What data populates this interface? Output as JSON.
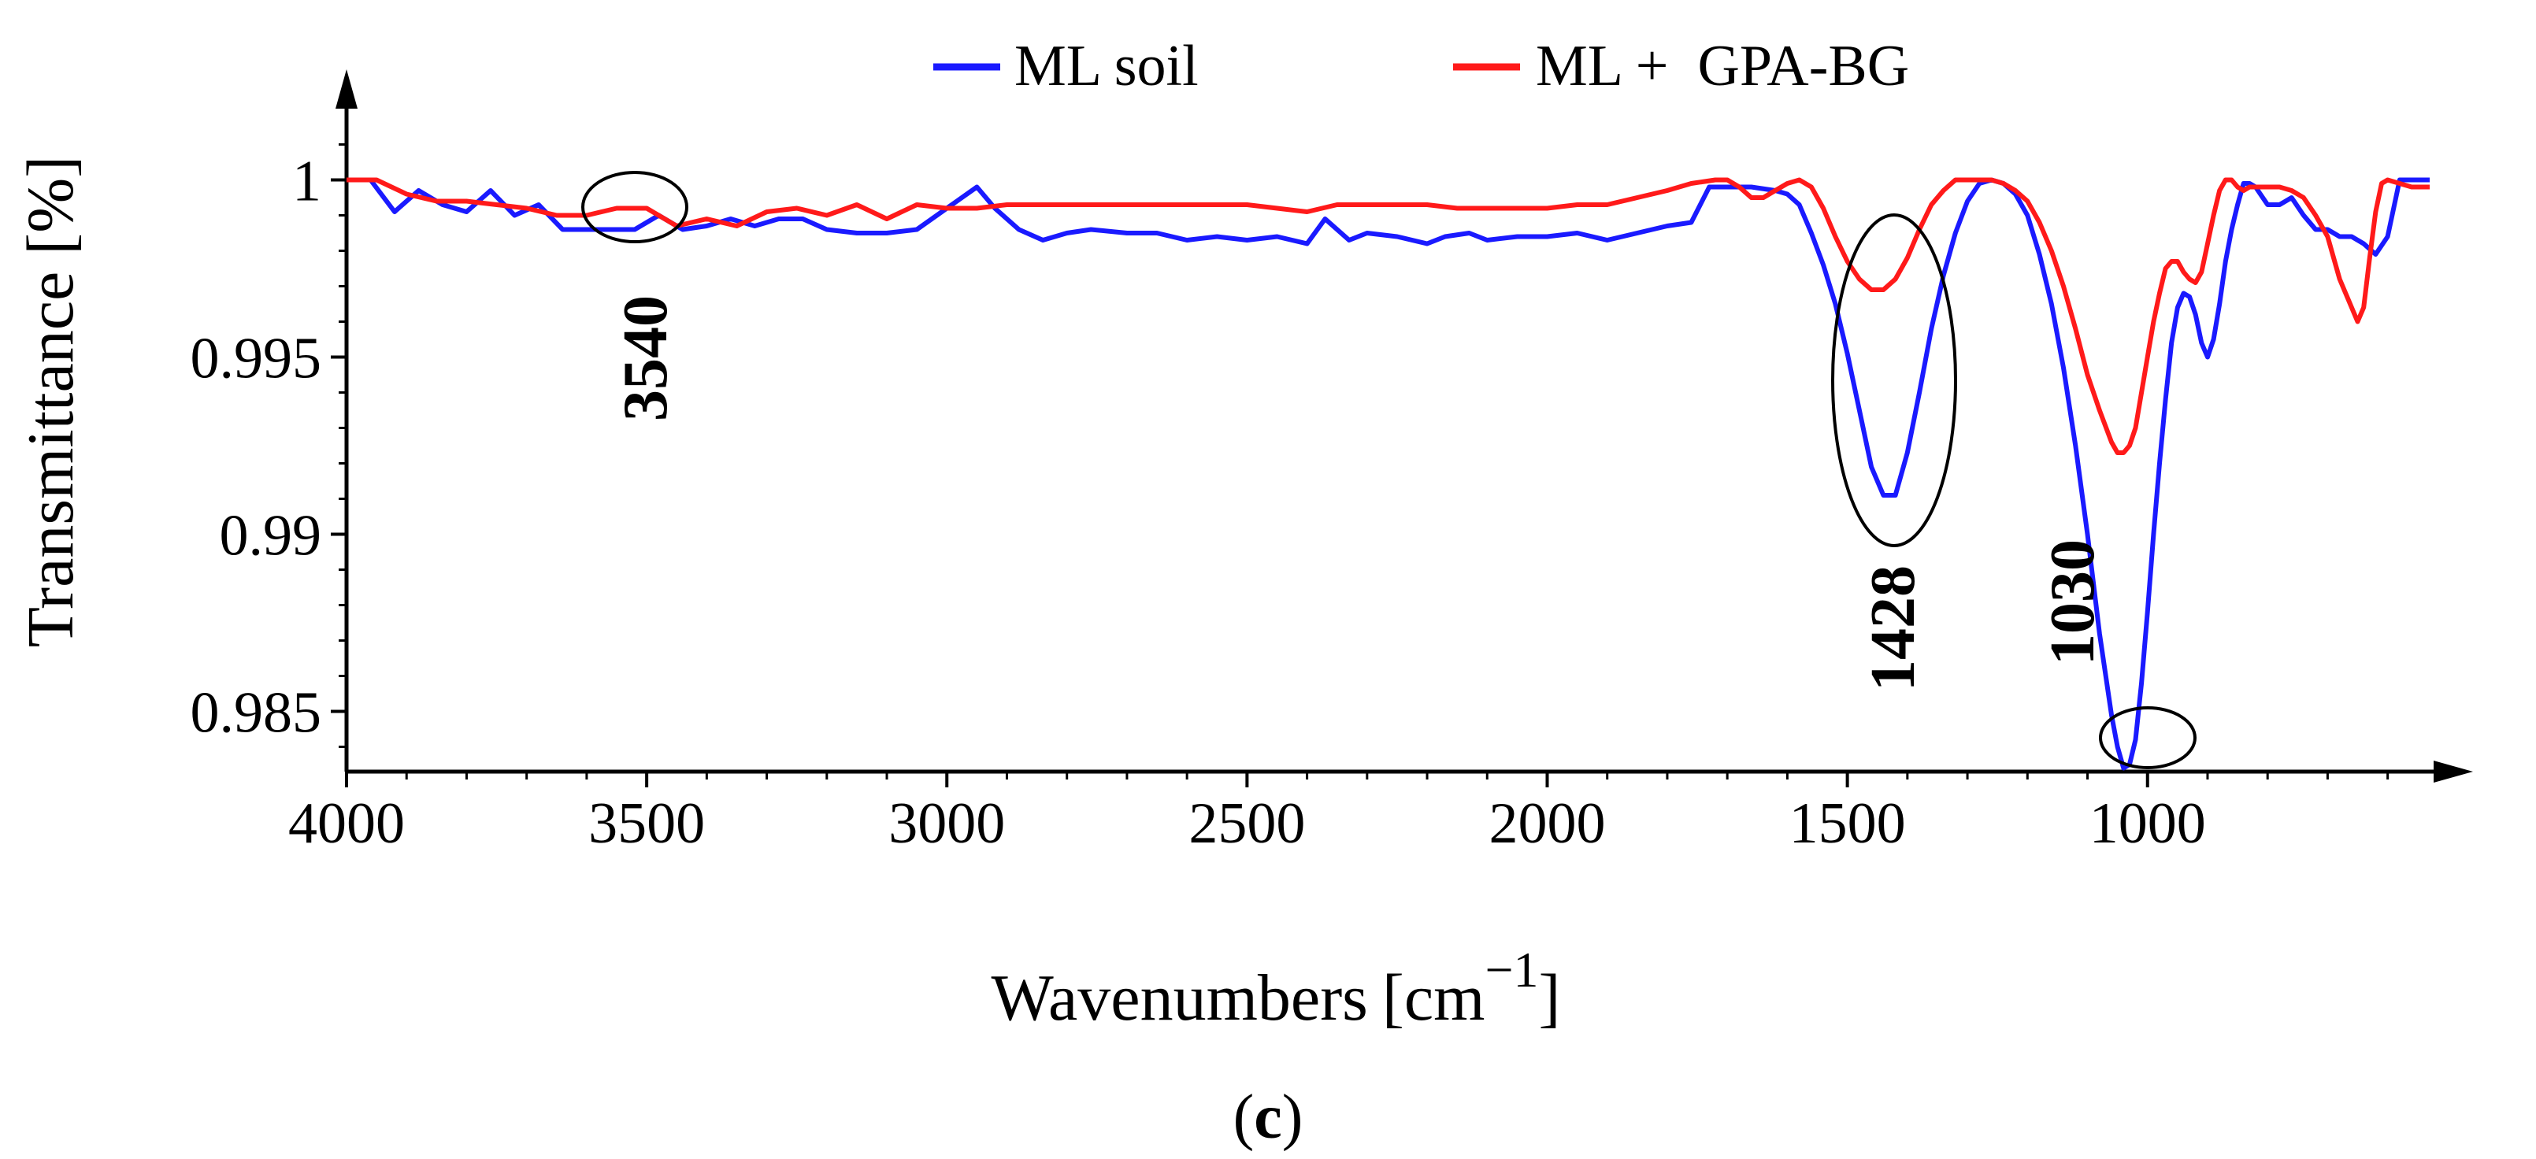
{
  "chart_data": {
    "type": "line",
    "xlabel": "Wavenumbers",
    "xlabel_unit_open": "[cm",
    "xlabel_unit_sup": "−1",
    "xlabel_unit_close": "]",
    "ylabel": "Transmittance [%]",
    "panel_label": "(c)",
    "panel_label_open": "(",
    "panel_label_letter": "c",
    "panel_label_close": ")",
    "xlim": [
      4000,
      530
    ],
    "ylim": [
      0.9833,
      1.0023
    ],
    "x_ticks": [
      4000,
      3500,
      3000,
      2500,
      2000,
      1500,
      1000
    ],
    "x_tick_labels": [
      "4000",
      "3500",
      "3000",
      "2500",
      "2000",
      "1500",
      "1000"
    ],
    "y_ticks": [
      0.985,
      0.99,
      0.995,
      1
    ],
    "y_tick_labels": [
      "0.985",
      "0.99",
      "0.995",
      "1"
    ],
    "legend": [
      {
        "label": "ML soil",
        "color": "#1a1aff"
      },
      {
        "label": "ML +  GPA-BG",
        "color": "#ff1a1a"
      }
    ],
    "annotations": [
      {
        "text": "3540",
        "x": 3540,
        "y": 0.9988,
        "rotated": true
      },
      {
        "text": "1428",
        "x": 1428,
        "y": 0.9923,
        "rotated": true
      },
      {
        "text": "1030",
        "x": 1030,
        "y": 0.9836,
        "rotated": true
      }
    ],
    "series": [
      {
        "name": "ML soil",
        "color": "#1a1aff",
        "x": [
          4000,
          3960,
          3920,
          3880,
          3840,
          3800,
          3760,
          3720,
          3680,
          3640,
          3600,
          3560,
          3520,
          3480,
          3440,
          3400,
          3360,
          3320,
          3280,
          3240,
          3200,
          3150,
          3100,
          3050,
          3000,
          2950,
          2920,
          2880,
          2840,
          2800,
          2760,
          2700,
          2650,
          2600,
          2550,
          2500,
          2450,
          2400,
          2370,
          2330,
          2300,
          2250,
          2200,
          2170,
          2130,
          2100,
          2050,
          2000,
          1950,
          1900,
          1850,
          1800,
          1760,
          1730,
          1700,
          1660,
          1620,
          1600,
          1580,
          1560,
          1540,
          1520,
          1500,
          1480,
          1460,
          1440,
          1420,
          1400,
          1380,
          1360,
          1340,
          1320,
          1300,
          1280,
          1260,
          1240,
          1220,
          1200,
          1180,
          1160,
          1140,
          1120,
          1100,
          1080,
          1060,
          1050,
          1040,
          1030,
          1020,
          1010,
          1000,
          990,
          980,
          970,
          960,
          950,
          940,
          930,
          920,
          910,
          900,
          890,
          880,
          870,
          860,
          850,
          840,
          830,
          820,
          800,
          780,
          760,
          740,
          720,
          700,
          680,
          660,
          640,
          620,
          600,
          580,
          560,
          530
        ],
        "y": [
          1.0,
          1.0,
          0.9991,
          0.9997,
          0.9993,
          0.9991,
          0.9997,
          0.999,
          0.9993,
          0.9986,
          0.9986,
          0.9986,
          0.9986,
          0.999,
          0.9986,
          0.9987,
          0.9989,
          0.9987,
          0.9989,
          0.9989,
          0.9986,
          0.9985,
          0.9985,
          0.9986,
          0.9992,
          0.9998,
          0.9992,
          0.9986,
          0.9983,
          0.9985,
          0.9986,
          0.9985,
          0.9985,
          0.9983,
          0.9984,
          0.9983,
          0.9984,
          0.9982,
          0.9989,
          0.9983,
          0.9985,
          0.9984,
          0.9982,
          0.9984,
          0.9985,
          0.9983,
          0.9984,
          0.9984,
          0.9985,
          0.9983,
          0.9985,
          0.9987,
          0.9988,
          0.9998,
          0.9998,
          0.9998,
          0.9997,
          0.9996,
          0.9993,
          0.9985,
          0.9976,
          0.9965,
          0.9951,
          0.9935,
          0.9919,
          0.9911,
          0.9911,
          0.9923,
          0.994,
          0.9958,
          0.9973,
          0.9985,
          0.9994,
          0.9999,
          1.0,
          0.9999,
          0.9996,
          0.999,
          0.9979,
          0.9965,
          0.9947,
          0.9925,
          0.99,
          0.9872,
          0.9849,
          0.984,
          0.9834,
          0.9835,
          0.9842,
          0.9858,
          0.9878,
          0.99,
          0.992,
          0.9938,
          0.9954,
          0.9964,
          0.9968,
          0.9967,
          0.9962,
          0.9954,
          0.995,
          0.9955,
          0.9965,
          0.9977,
          0.9986,
          0.9993,
          0.9999,
          0.9999,
          0.9998,
          0.9993,
          0.9993,
          0.9995,
          0.999,
          0.9986,
          0.9986,
          0.9984,
          0.9984,
          0.9982,
          0.9979,
          0.9984,
          1.0,
          1.0,
          1.0
        ]
      },
      {
        "name": "ML +  GPA-BG",
        "color": "#ff1a1a",
        "x": [
          4000,
          3950,
          3900,
          3850,
          3800,
          3750,
          3700,
          3650,
          3600,
          3550,
          3500,
          3450,
          3400,
          3350,
          3300,
          3250,
          3200,
          3150,
          3100,
          3050,
          3000,
          2950,
          2900,
          2850,
          2800,
          2750,
          2700,
          2650,
          2600,
          2550,
          2500,
          2450,
          2400,
          2350,
          2300,
          2250,
          2200,
          2150,
          2100,
          2050,
          2000,
          1950,
          1900,
          1850,
          1800,
          1760,
          1720,
          1700,
          1680,
          1660,
          1640,
          1620,
          1600,
          1580,
          1560,
          1540,
          1520,
          1500,
          1480,
          1460,
          1440,
          1420,
          1400,
          1380,
          1360,
          1340,
          1320,
          1300,
          1280,
          1260,
          1240,
          1220,
          1200,
          1180,
          1160,
          1140,
          1120,
          1100,
          1080,
          1060,
          1050,
          1040,
          1030,
          1020,
          1010,
          1000,
          990,
          980,
          970,
          960,
          950,
          940,
          930,
          920,
          910,
          900,
          890,
          880,
          870,
          860,
          850,
          840,
          830,
          820,
          800,
          780,
          760,
          740,
          720,
          700,
          680,
          660,
          650,
          640,
          630,
          620,
          610,
          600,
          580,
          560,
          530
        ],
        "y": [
          1.0,
          1.0,
          0.9996,
          0.9994,
          0.9994,
          0.9993,
          0.9992,
          0.999,
          0.999,
          0.9992,
          0.9992,
          0.9987,
          0.9989,
          0.9987,
          0.9991,
          0.9992,
          0.999,
          0.9993,
          0.9989,
          0.9993,
          0.9992,
          0.9992,
          0.9993,
          0.9993,
          0.9993,
          0.9993,
          0.9993,
          0.9993,
          0.9993,
          0.9993,
          0.9993,
          0.9992,
          0.9991,
          0.9993,
          0.9993,
          0.9993,
          0.9993,
          0.9992,
          0.9992,
          0.9992,
          0.9992,
          0.9993,
          0.9993,
          0.9995,
          0.9997,
          0.9999,
          1.0,
          1.0,
          0.9998,
          0.9995,
          0.9995,
          0.9997,
          0.9999,
          1.0,
          0.9998,
          0.9992,
          0.9984,
          0.9977,
          0.9972,
          0.9969,
          0.9969,
          0.9972,
          0.9978,
          0.9986,
          0.9993,
          0.9997,
          1.0,
          1.0,
          1.0,
          1.0,
          0.9999,
          0.9997,
          0.9994,
          0.9988,
          0.998,
          0.997,
          0.9958,
          0.9945,
          0.9935,
          0.9926,
          0.9923,
          0.9923,
          0.9925,
          0.993,
          0.994,
          0.995,
          0.996,
          0.9968,
          0.9975,
          0.9977,
          0.9977,
          0.9974,
          0.9972,
          0.9971,
          0.9974,
          0.9982,
          0.999,
          0.9997,
          1.0,
          1.0,
          0.9998,
          0.9997,
          0.9998,
          0.9998,
          0.9998,
          0.9998,
          0.9997,
          0.9995,
          0.999,
          0.9984,
          0.9972,
          0.9964,
          0.996,
          0.9964,
          0.9978,
          0.9991,
          0.9999,
          1.0,
          0.9999,
          0.9998,
          0.9998
        ]
      }
    ]
  }
}
